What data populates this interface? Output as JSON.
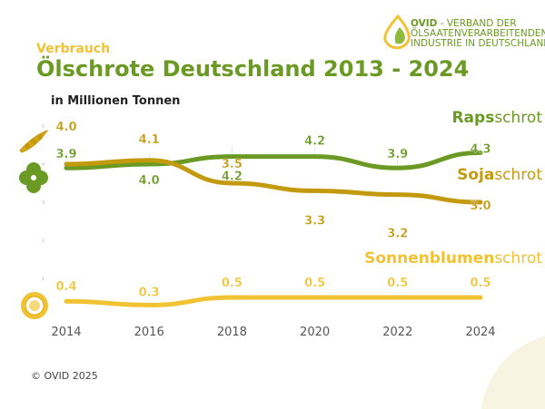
{
  "logo": {
    "brand": "OVID",
    "line1": " - VERBAND DER",
    "line2": "ÖLSAATENVERARBEITENDEN",
    "line3": "INDUSTRIE IN DEUTSCHLAND"
  },
  "copyright": "© OVID 2025",
  "chart_data": {
    "type": "line",
    "subtitle": "Verbrauch",
    "title": "Ölschrote Deutschland 2013 - 2024",
    "ylabel": "in Millionen Tonnen",
    "x": [
      2014,
      2016,
      2018,
      2020,
      2022,
      2024
    ],
    "x_ticks": [
      "2014",
      "2016",
      "2018",
      "2020",
      "2022",
      "2024"
    ],
    "y_ticks": [
      "1",
      "2",
      "3",
      "4",
      "5"
    ],
    "ylim": [
      0,
      5
    ],
    "grid": false,
    "series": [
      {
        "name_bold": "Raps",
        "name_rest": "schrot",
        "color": "#6a9a23",
        "values": [
          3.9,
          4.0,
          4.2,
          4.2,
          3.9,
          4.3
        ],
        "labels": [
          "3.9",
          "4.0",
          "4.2",
          "4.2",
          "3.9",
          "4.3"
        ]
      },
      {
        "name_bold": "Soja",
        "name_rest": "schrot",
        "color": "#c39a0e",
        "values": [
          4.0,
          4.1,
          3.5,
          3.3,
          3.2,
          3.0
        ],
        "labels": [
          "4.0",
          "4.1",
          "3.5",
          "3.3",
          "3.2",
          "3.0"
        ]
      },
      {
        "name_bold": "Sonnenblumen",
        "name_rest": "schrot",
        "color": "#f1c232",
        "values": [
          0.4,
          0.3,
          0.5,
          0.5,
          0.5,
          0.5
        ],
        "labels": [
          "0.4",
          "0.3",
          "0.5",
          "0.5",
          "0.5",
          "0.5"
        ]
      }
    ]
  }
}
